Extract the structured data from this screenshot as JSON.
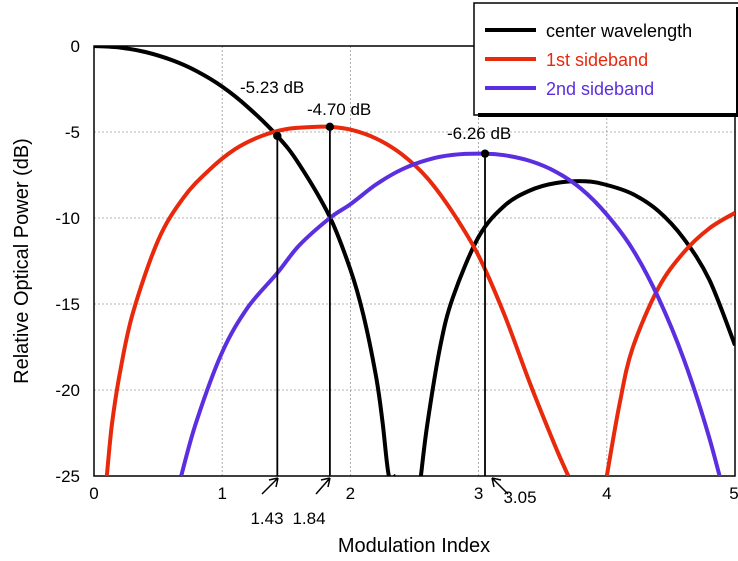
{
  "chart_data": {
    "type": "line",
    "xlabel": "Modulation Index",
    "ylabel": "Relative Optical Power (dB)",
    "xlim": [
      0,
      5
    ],
    "ylim": [
      -25,
      0
    ],
    "x_ticks": [
      "0",
      "1",
      "2",
      "3",
      "4",
      "5"
    ],
    "y_ticks": [
      "0",
      "-5",
      "-10",
      "-15",
      "-20",
      "-25"
    ],
    "grid": true,
    "legend_position": "top-right",
    "series": [
      {
        "name": "center wavelength",
        "color": "#000000",
        "x": [
          0,
          0.2,
          0.4,
          0.6,
          0.8,
          1.0,
          1.2,
          1.43,
          1.6,
          1.84,
          2.0,
          2.1,
          2.2,
          2.25,
          2.3,
          2.35,
          "gap",
          2.55,
          2.6,
          2.7,
          2.8,
          3.0,
          3.2,
          3.4,
          3.6,
          3.83,
          4.0,
          4.2,
          4.4,
          4.6,
          4.8,
          5.0
        ],
        "y": [
          0,
          -0.09,
          -0.35,
          -0.8,
          -1.46,
          -2.36,
          -3.55,
          -5.23,
          -6.87,
          -9.95,
          -13.0,
          -15.6,
          -19.2,
          -21.8,
          -25.0,
          -25.0,
          null,
          -25.0,
          -22.0,
          -17.5,
          -14.6,
          -11.1,
          -9.3,
          -8.4,
          -7.97,
          -7.86,
          -8.08,
          -8.6,
          -9.58,
          -11.2,
          -13.6,
          -17.4
        ]
      },
      {
        "name": "1st sideband",
        "color": "#e8290b",
        "x": [
          0.1,
          0.14,
          0.2,
          0.3,
          0.5,
          0.7,
          0.9,
          1.1,
          1.3,
          1.5,
          1.7,
          1.84,
          2.0,
          2.2,
          2.4,
          2.6,
          2.8,
          3.0,
          3.2,
          3.4,
          3.6,
          3.7,
          "gap",
          4.0,
          4.1,
          4.2,
          4.4,
          4.6,
          4.8,
          5.0
        ],
        "y": [
          -25.0,
          -22.0,
          -19.1,
          -15.6,
          -11.3,
          -8.8,
          -7.2,
          -6.0,
          -5.25,
          -4.83,
          -4.71,
          -4.7,
          -4.86,
          -5.38,
          -6.29,
          -7.68,
          -9.7,
          -12.2,
          -15.6,
          -19.6,
          -23.3,
          -25.0,
          null,
          -25.0,
          -20.8,
          -17.6,
          -14.1,
          -12.0,
          -10.6,
          -9.7
        ]
      },
      {
        "name": "2nd sideband",
        "color": "#5b2fe0",
        "x": [
          0.68,
          0.8,
          1.0,
          1.2,
          1.43,
          1.6,
          1.84,
          2.0,
          2.2,
          2.4,
          2.6,
          2.8,
          3.05,
          3.2,
          3.4,
          3.6,
          3.8,
          4.0,
          4.2,
          4.4,
          4.6,
          4.8,
          5.0
        ],
        "y": [
          -25.0,
          -21.8,
          -17.8,
          -15.2,
          -13.2,
          -11.6,
          -10.0,
          -9.2,
          -8.05,
          -7.18,
          -6.62,
          -6.33,
          -6.26,
          -6.35,
          -6.68,
          -7.3,
          -8.3,
          -9.8,
          -11.8,
          -14.6,
          -18.2,
          -22.8,
          -28.5
        ]
      }
    ],
    "annotations": [
      {
        "label": "-5.23 dB",
        "x": 1.43,
        "y": -5.23,
        "marker_label": "1.43"
      },
      {
        "label": "-4.70 dB",
        "x": 1.84,
        "y": -4.7,
        "marker_label": "1.84"
      },
      {
        "label": "-6.26 dB",
        "x": 3.05,
        "y": -6.26,
        "marker_label": "3.05"
      }
    ]
  }
}
